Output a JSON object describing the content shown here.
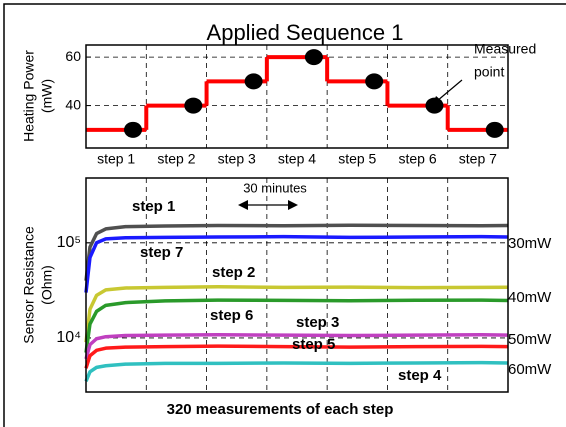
{
  "chart_data": [
    {
      "type": "step",
      "title": "Applied Sequence 1",
      "ylabel": [
        "Heating Power",
        "(mW)"
      ],
      "categories": [
        "step 1",
        "step 2",
        "step 3",
        "step 4",
        "step 5",
        "step 6",
        "step 7"
      ],
      "values": [
        30,
        40,
        50,
        60,
        50,
        40,
        30
      ],
      "color": "#ff0000",
      "marker_color": "#000000",
      "ylim": [
        22.5,
        65
      ],
      "yticks": [
        40,
        60
      ],
      "grid": true,
      "annotations": [
        "Measured",
        "point"
      ]
    },
    {
      "type": "line",
      "ylabel": [
        "Sensor Resistance",
        "(Ohm)"
      ],
      "xlabel": "320 measurements of each step",
      "x": [
        0,
        3,
        8,
        15,
        30,
        60,
        100,
        150,
        200,
        250,
        300,
        320
      ],
      "xlim": [
        0,
        320
      ],
      "ylog": true,
      "ylim": [
        2700,
        480000
      ],
      "yticks": [
        {
          "value": 10000,
          "label": "10⁴"
        },
        {
          "value": 100000,
          "label": "10⁵"
        }
      ],
      "grid": true,
      "series": [
        {
          "name": "step 1",
          "color": "#505050",
          "values": [
            40000,
            90000,
            125000,
            140000,
            148000,
            150000,
            152000,
            151000,
            153000,
            152000,
            151000,
            152000
          ]
        },
        {
          "name": "step 7",
          "color": "#1a1aff",
          "values": [
            30000,
            70000,
            100000,
            110000,
            113000,
            114000,
            115000,
            116000,
            114000,
            115000,
            116000,
            115000
          ]
        },
        {
          "name": "step 2",
          "color": "#c8c832",
          "values": [
            9000,
            20000,
            28000,
            32000,
            33500,
            34000,
            34500,
            34000,
            34200,
            33800,
            34000,
            34100
          ]
        },
        {
          "name": "step 6",
          "color": "#2a9a2a",
          "values": [
            7000,
            14000,
            19000,
            22000,
            23500,
            24500,
            25000,
            24800,
            24600,
            24900,
            25000,
            24700
          ]
        },
        {
          "name": "step 3",
          "color": "#c040c0",
          "values": [
            6000,
            8500,
            9800,
            10300,
            10600,
            10700,
            10800,
            10700,
            10600,
            10700,
            10800,
            10700
          ]
        },
        {
          "name": "step 5",
          "color": "#ff1a1a",
          "values": [
            4800,
            6500,
            7400,
            7800,
            8000,
            8100,
            8200,
            8100,
            8000,
            8100,
            8150,
            8100
          ]
        },
        {
          "name": "step 4",
          "color": "#30c0c0",
          "values": [
            3500,
            4400,
            4900,
            5100,
            5300,
            5400,
            5400,
            5450,
            5400,
            5450,
            5500,
            5450
          ]
        }
      ],
      "annotations": [
        "30 minutes",
        "30mW",
        "40mW",
        "50mW",
        "60mW"
      ]
    }
  ]
}
